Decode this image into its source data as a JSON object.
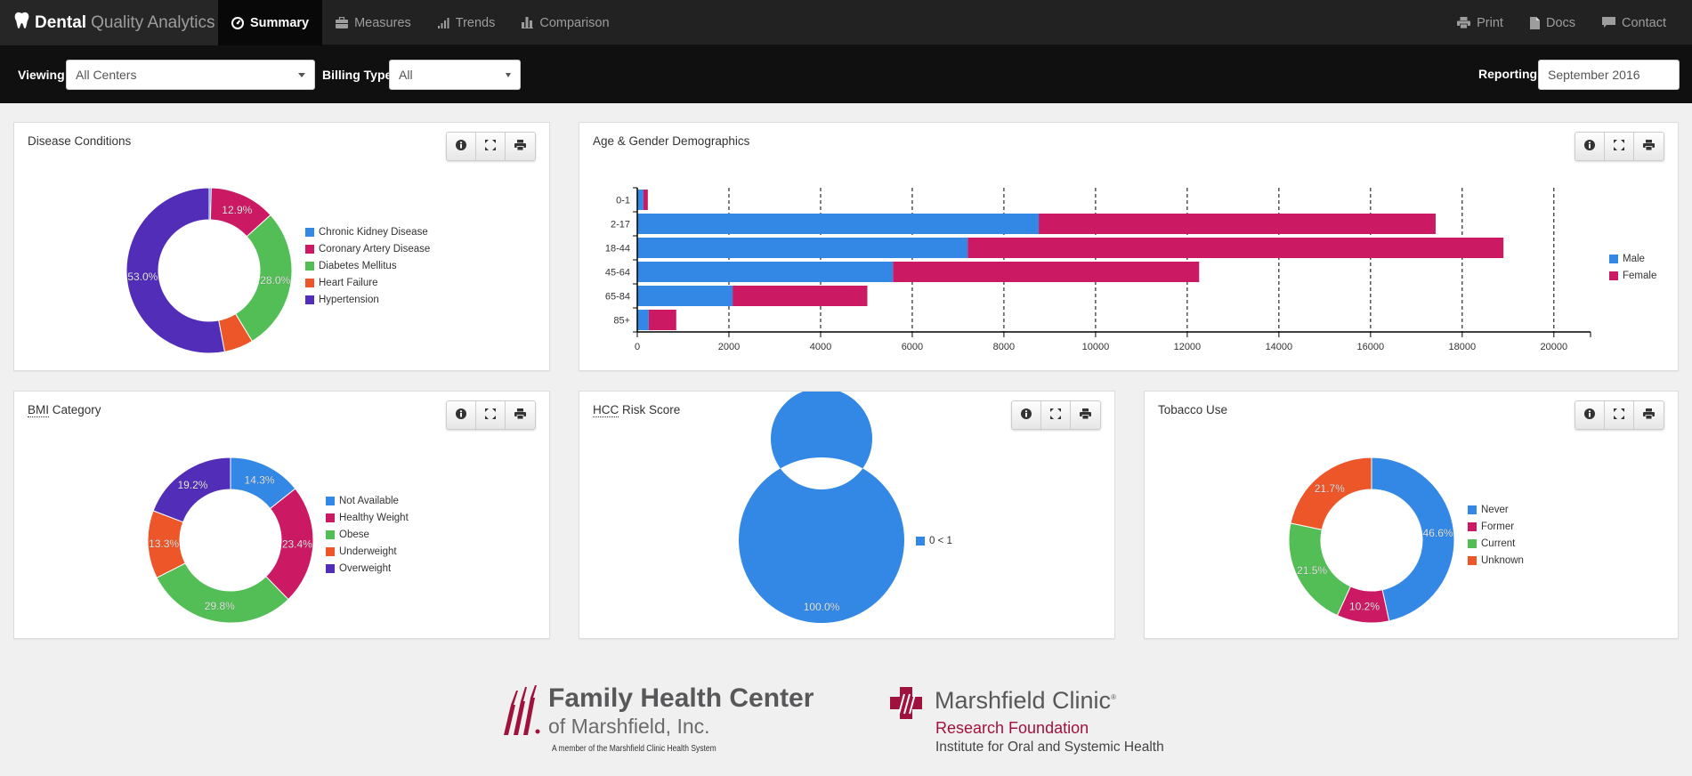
{
  "app": {
    "brand_bold": "Dental",
    "brand_light": "Quality Analytics",
    "brand_icon": "tooth-icon"
  },
  "nav": {
    "left": [
      {
        "label": "Summary",
        "icon": "dashboard-icon",
        "active": true
      },
      {
        "label": "Measures",
        "icon": "briefcase-icon",
        "active": false
      },
      {
        "label": "Trends",
        "icon": "signal-icon",
        "active": false
      },
      {
        "label": "Comparison",
        "icon": "bar-chart-icon",
        "active": false
      }
    ],
    "right": [
      {
        "label": "Print",
        "icon": "print-icon"
      },
      {
        "label": "Docs",
        "icon": "file-icon"
      },
      {
        "label": "Contact",
        "icon": "comment-icon"
      }
    ]
  },
  "filters": {
    "viewing_label": "Viewing",
    "viewing_value": "All Centers",
    "billing_label": "Billing Type",
    "billing_value": "All",
    "reporting_label": "Reporting",
    "reporting_value": "September 2016"
  },
  "colors": {
    "blue": "#3388e5",
    "magenta": "#cc1964",
    "green": "#52be55",
    "orange": "#ec5628",
    "purple": "#512db8"
  },
  "panel_buttons": [
    "info-icon",
    "expand-icon",
    "print-icon"
  ],
  "chart_data": [
    {
      "id": "disease",
      "type": "pie",
      "title": "Disease Conditions",
      "categories": [
        "Chronic Kidney Disease",
        "Coronary Artery Disease",
        "Diabetes Mellitus",
        "Heart Failure",
        "Hypertension"
      ],
      "values": [
        0.4,
        12.9,
        28.0,
        5.7,
        53.0
      ],
      "labels": [
        "",
        "12.9%",
        "28.0%",
        "",
        "53.0%"
      ],
      "colors": [
        "#3388e5",
        "#cc1964",
        "#52be55",
        "#ec5628",
        "#512db8"
      ],
      "legend": "right"
    },
    {
      "id": "age",
      "type": "bar",
      "orientation": "horizontal",
      "stacked": true,
      "title": "Age & Gender Demographics",
      "categories": [
        "0-1",
        "2-17",
        "18-44",
        "45-64",
        "65-84",
        "85+"
      ],
      "series": [
        {
          "name": "Male",
          "color": "#3388e5",
          "values": [
            135,
            8760,
            7210,
            5580,
            2080,
            250
          ]
        },
        {
          "name": "Female",
          "color": "#cc1964",
          "values": [
            95,
            8660,
            11690,
            6680,
            2940,
            600
          ]
        }
      ],
      "xticks": [
        0,
        2000,
        4000,
        6000,
        8000,
        10000,
        12000,
        14000,
        16000,
        18000,
        20000
      ],
      "xlim": [
        0,
        20800
      ],
      "grid": "vertical-dashed",
      "legend": "right"
    },
    {
      "id": "bmi",
      "type": "pie",
      "title": "BMI Category",
      "title_abbr": "BMI",
      "title_rest": " Category",
      "categories": [
        "Not Available",
        "Healthy Weight",
        "Obese",
        "Underweight",
        "Overweight"
      ],
      "values": [
        14.3,
        23.4,
        29.8,
        13.3,
        19.2
      ],
      "labels": [
        "14.3%",
        "23.4%",
        "29.8%",
        "13.3%",
        "19.2%"
      ],
      "colors": [
        "#3388e5",
        "#cc1964",
        "#52be55",
        "#ec5628",
        "#512db8"
      ],
      "legend": "right"
    },
    {
      "id": "hcc",
      "type": "pie",
      "title": "HCC Risk Score",
      "title_abbr": "HCC",
      "title_rest": " Risk Score",
      "categories": [
        "0 < 1"
      ],
      "values": [
        100.0
      ],
      "labels": [
        "100.0%"
      ],
      "colors": [
        "#3388e5"
      ],
      "legend": "right"
    },
    {
      "id": "tobacco",
      "type": "pie",
      "title": "Tobacco Use",
      "categories": [
        "Never",
        "Former",
        "Current",
        "Unknown"
      ],
      "values": [
        46.6,
        10.2,
        21.5,
        21.7
      ],
      "labels": [
        "46.6%",
        "10.2%",
        "21.5%",
        "21.7%"
      ],
      "colors": [
        "#3388e5",
        "#cc1964",
        "#52be55",
        "#ec5628"
      ],
      "legend": "right"
    }
  ],
  "footer": {
    "fhc_line1": "Family Health Center",
    "fhc_line2": "of Marshfield, Inc.",
    "fhc_line3": "A member of the Marshfield Clinic Health System",
    "mc_line1": "Marshfield Clinic",
    "mc_reg": "®",
    "mc_line2": "Research Foundation",
    "mc_line3": "Institute for Oral and Systemic Health"
  }
}
